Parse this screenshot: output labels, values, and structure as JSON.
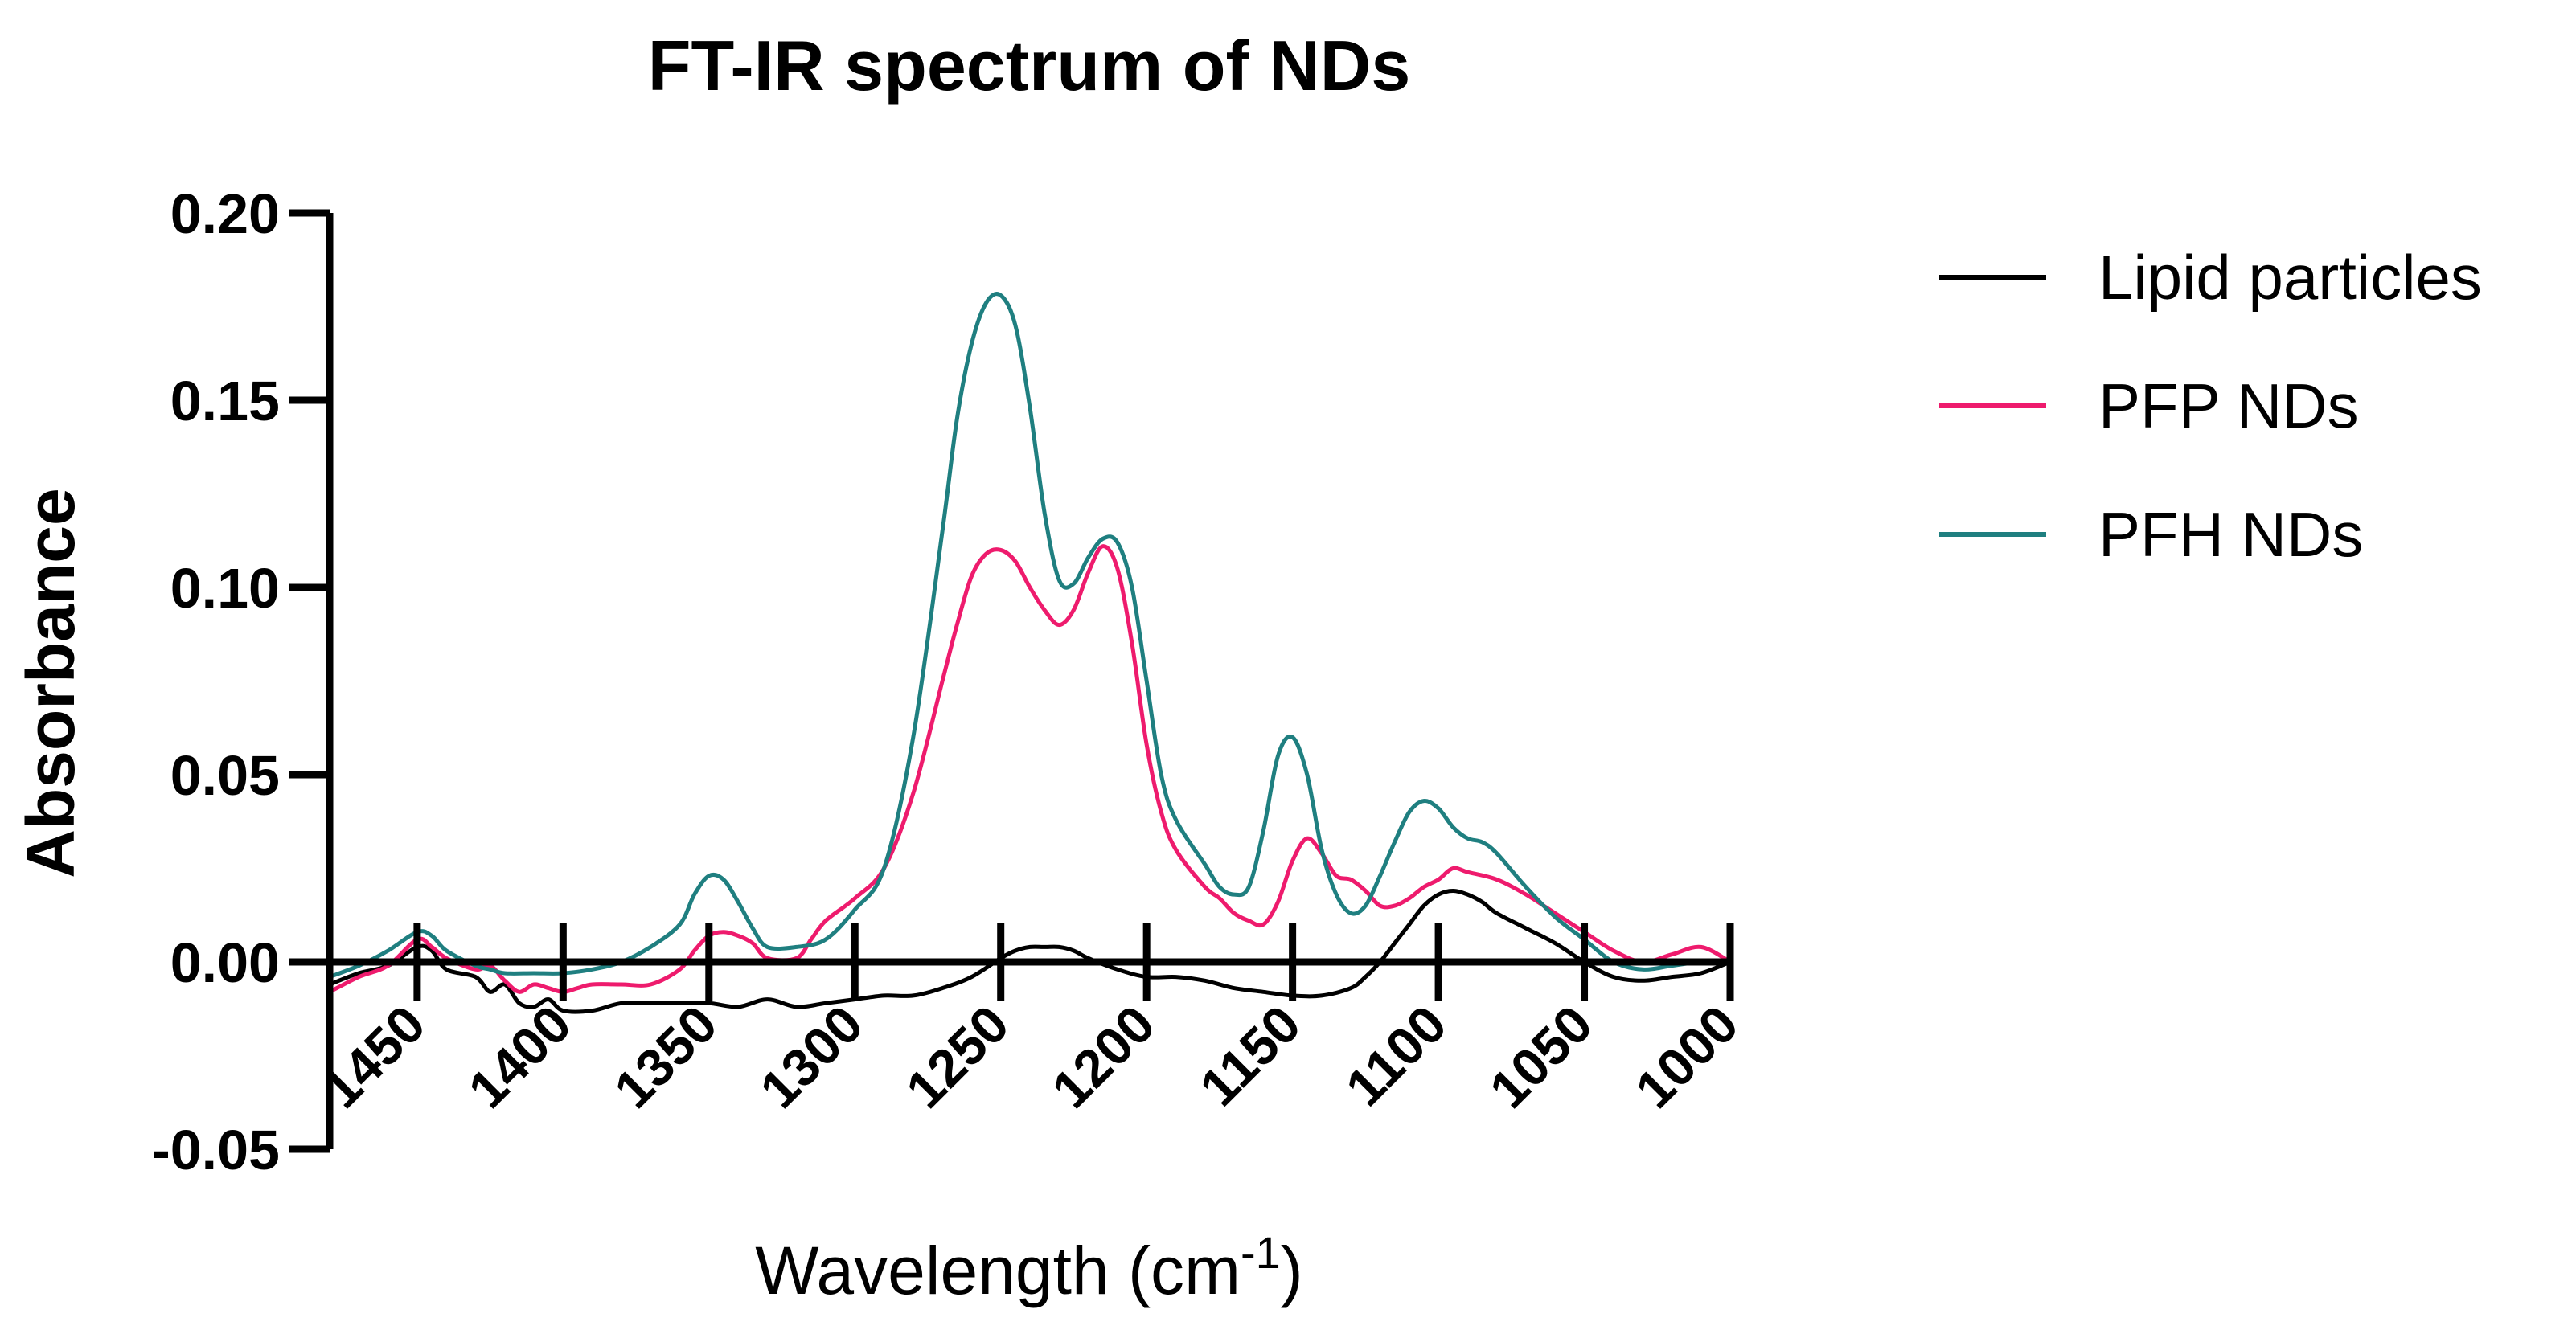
{
  "chart_data": {
    "type": "line",
    "title": "FT-IR spectrum of NDs",
    "xlabel": "Wavelength (cm",
    "xlabel_sup": "-1",
    "xlabel_end": ")",
    "ylabel": "Absorbance",
    "xlim": [
      1480,
      1000
    ],
    "ylim": [
      -0.05,
      0.2
    ],
    "xticks": [
      1450,
      1400,
      1350,
      1300,
      1250,
      1200,
      1150,
      1100,
      1050,
      1000
    ],
    "xtick_labels": [
      "1450",
      "1400",
      "1350",
      "1300",
      "1250",
      "1200",
      "1150",
      "1100",
      "1050",
      "1000"
    ],
    "yticks": [
      -0.05,
      0,
      0.05,
      0.1,
      0.15,
      0.2
    ],
    "ytick_labels": [
      "-0.05",
      "0.00",
      "0.05",
      "0.10",
      "0.15",
      "0.20"
    ],
    "legend_position": "top-right",
    "series": [
      {
        "name": "Lipid particles",
        "color": "#000000",
        "x": [
          1480,
          1470,
          1460,
          1450,
          1445,
          1440,
          1430,
          1425,
          1420,
          1415,
          1410,
          1405,
          1400,
          1390,
          1380,
          1370,
          1360,
          1350,
          1340,
          1330,
          1320,
          1310,
          1300,
          1290,
          1280,
          1270,
          1260,
          1250,
          1245,
          1240,
          1235,
          1230,
          1225,
          1220,
          1210,
          1200,
          1190,
          1180,
          1170,
          1160,
          1150,
          1140,
          1130,
          1125,
          1120,
          1115,
          1110,
          1105,
          1100,
          1095,
          1090,
          1085,
          1080,
          1070,
          1060,
          1050,
          1040,
          1030,
          1020,
          1010,
          1000
        ],
        "y": [
          -0.006,
          -0.003,
          -0.001,
          0.004,
          0.003,
          -0.002,
          -0.004,
          -0.008,
          -0.006,
          -0.011,
          -0.012,
          -0.01,
          -0.013,
          -0.013,
          -0.011,
          -0.011,
          -0.011,
          -0.011,
          -0.012,
          -0.01,
          -0.012,
          -0.011,
          -0.01,
          -0.009,
          -0.009,
          -0.007,
          -0.004,
          0.001,
          0.003,
          0.004,
          0.004,
          0.004,
          0.003,
          0.001,
          -0.002,
          -0.004,
          -0.004,
          -0.005,
          -0.007,
          -0.008,
          -0.009,
          -0.009,
          -0.007,
          -0.004,
          0.0,
          0.005,
          0.01,
          0.015,
          0.018,
          0.019,
          0.018,
          0.016,
          0.013,
          0.009,
          0.005,
          0.0,
          -0.004,
          -0.005,
          -0.004,
          -0.003,
          0.0
        ]
      },
      {
        "name": "PFP NDs",
        "color": "#ee1b6d",
        "x": [
          1480,
          1470,
          1460,
          1450,
          1445,
          1440,
          1430,
          1425,
          1420,
          1415,
          1410,
          1405,
          1400,
          1395,
          1390,
          1380,
          1370,
          1360,
          1355,
          1350,
          1345,
          1340,
          1335,
          1330,
          1320,
          1315,
          1310,
          1300,
          1290,
          1280,
          1270,
          1265,
          1260,
          1255,
          1250,
          1245,
          1240,
          1235,
          1230,
          1225,
          1220,
          1215,
          1210,
          1205,
          1200,
          1195,
          1190,
          1180,
          1175,
          1170,
          1165,
          1160,
          1155,
          1150,
          1145,
          1140,
          1135,
          1130,
          1125,
          1120,
          1115,
          1110,
          1105,
          1100,
          1095,
          1090,
          1080,
          1070,
          1060,
          1050,
          1040,
          1030,
          1020,
          1010,
          1000
        ],
        "y": [
          -0.008,
          -0.004,
          -0.001,
          0.006,
          0.004,
          0.001,
          -0.002,
          -0.001,
          -0.005,
          -0.008,
          -0.006,
          -0.007,
          -0.008,
          -0.007,
          -0.006,
          -0.006,
          -0.006,
          -0.002,
          0.003,
          0.007,
          0.008,
          0.007,
          0.005,
          0.001,
          0.001,
          0.006,
          0.011,
          0.017,
          0.025,
          0.045,
          0.075,
          0.09,
          0.103,
          0.109,
          0.11,
          0.107,
          0.1,
          0.094,
          0.09,
          0.094,
          0.104,
          0.111,
          0.105,
          0.085,
          0.058,
          0.04,
          0.03,
          0.02,
          0.017,
          0.013,
          0.011,
          0.01,
          0.016,
          0.027,
          0.033,
          0.029,
          0.023,
          0.022,
          0.019,
          0.015,
          0.015,
          0.017,
          0.02,
          0.022,
          0.025,
          0.024,
          0.022,
          0.018,
          0.013,
          0.008,
          0.003,
          0.0,
          0.002,
          0.004,
          0.0
        ]
      },
      {
        "name": "PFH NDs",
        "color": "#1f7f80",
        "x": [
          1480,
          1470,
          1460,
          1450,
          1445,
          1440,
          1430,
          1425,
          1420,
          1410,
          1400,
          1390,
          1380,
          1370,
          1360,
          1355,
          1350,
          1345,
          1340,
          1335,
          1330,
          1320,
          1310,
          1300,
          1290,
          1280,
          1270,
          1265,
          1260,
          1255,
          1250,
          1245,
          1240,
          1235,
          1230,
          1225,
          1220,
          1215,
          1210,
          1205,
          1200,
          1195,
          1190,
          1180,
          1175,
          1170,
          1165,
          1160,
          1155,
          1150,
          1145,
          1140,
          1135,
          1130,
          1125,
          1120,
          1115,
          1110,
          1105,
          1100,
          1095,
          1090,
          1085,
          1080,
          1070,
          1060,
          1050,
          1040,
          1030,
          1020,
          1010,
          1000
        ],
        "y": [
          -0.004,
          -0.001,
          0.003,
          0.008,
          0.007,
          0.003,
          -0.001,
          -0.002,
          -0.003,
          -0.003,
          -0.003,
          -0.002,
          0.0,
          0.004,
          0.01,
          0.018,
          0.023,
          0.022,
          0.016,
          0.009,
          0.004,
          0.004,
          0.006,
          0.014,
          0.025,
          0.06,
          0.115,
          0.145,
          0.165,
          0.176,
          0.178,
          0.17,
          0.148,
          0.12,
          0.102,
          0.101,
          0.108,
          0.113,
          0.112,
          0.1,
          0.075,
          0.05,
          0.038,
          0.026,
          0.02,
          0.018,
          0.02,
          0.035,
          0.055,
          0.06,
          0.05,
          0.03,
          0.018,
          0.013,
          0.015,
          0.023,
          0.032,
          0.04,
          0.043,
          0.041,
          0.036,
          0.033,
          0.032,
          0.029,
          0.02,
          0.012,
          0.006,
          0.0,
          -0.002,
          -0.001,
          0.0,
          0.0
        ]
      }
    ]
  }
}
